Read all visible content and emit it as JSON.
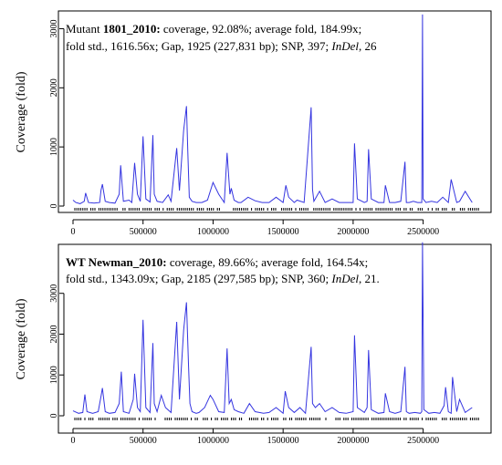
{
  "chart_data": [
    {
      "type": "line",
      "ylabel": "Coverage (fold)",
      "ylim": [
        0,
        3300
      ],
      "xlim": [
        0,
        2900000
      ],
      "xticks": [
        "0",
        "500000",
        "1000000",
        "1500000",
        "2000000",
        "2500000"
      ],
      "yticks": [
        "0",
        "1000",
        "2000",
        "3000"
      ],
      "annotation": {
        "line1": [
          {
            "text": "Mutant ",
            "bold": false
          },
          {
            "text": "1801_2010:",
            "bold": true
          },
          {
            "text": " coverage, 92.08%; average fold, 184.99x;",
            "bold": false
          }
        ],
        "line2": [
          {
            "text": "fold std., 1616.56x; Gap, 1925 (227,831 bp); SNP, 397; ",
            "bold": false
          },
          {
            "text": "InDel",
            "italic": true
          },
          {
            "text": ", 26",
            "bold": false
          }
        ]
      },
      "series": [
        {
          "x": [
            0,
            20000,
            50000,
            80000,
            90000,
            110000,
            150000,
            190000,
            200000,
            210000,
            230000,
            260000,
            300000,
            330000,
            340000,
            360000,
            400000,
            420000,
            440000,
            460000,
            480000,
            500000,
            520000,
            550000,
            570000,
            580000,
            600000,
            640000,
            680000,
            700000,
            740000,
            760000,
            790000,
            810000,
            820000,
            830000,
            850000,
            880000,
            920000,
            960000,
            1000000,
            1040000,
            1080000,
            1100000,
            1120000,
            1130000,
            1150000,
            1180000,
            1200000,
            1250000,
            1300000,
            1350000,
            1400000,
            1450000,
            1500000,
            1520000,
            1540000,
            1580000,
            1600000,
            1650000,
            1700000,
            1710000,
            1720000,
            1760000,
            1800000,
            1850000,
            1900000,
            1950000,
            2000000,
            2010000,
            2030000,
            2080000,
            2100000,
            2110000,
            2130000,
            2180000,
            2220000,
            2230000,
            2260000,
            2300000,
            2340000,
            2370000,
            2380000,
            2400000,
            2430000,
            2460000,
            2490000,
            2495000,
            2500000,
            2520000,
            2560000,
            2600000,
            2640000,
            2680000,
            2700000,
            2740000,
            2760000,
            2800000,
            2850000
          ],
          "y": [
            100,
            60,
            40,
            80,
            220,
            60,
            50,
            60,
            270,
            370,
            80,
            60,
            50,
            200,
            690,
            80,
            100,
            60,
            730,
            200,
            80,
            1180,
            120,
            70,
            1200,
            200,
            80,
            60,
            190,
            80,
            980,
            260,
            1280,
            1690,
            900,
            150,
            80,
            60,
            60,
            100,
            400,
            200,
            60,
            900,
            200,
            300,
            100,
            60,
            60,
            150,
            90,
            60,
            60,
            150,
            60,
            350,
            150,
            60,
            100,
            60,
            1670,
            280,
            80,
            250,
            60,
            120,
            60,
            60,
            60,
            1060,
            120,
            60,
            80,
            960,
            120,
            60,
            60,
            350,
            60,
            60,
            80,
            750,
            60,
            60,
            80,
            60,
            60,
            3240,
            120,
            60,
            80,
            60,
            150,
            60,
            450,
            60,
            80,
            250,
            60
          ]
        }
      ]
    },
    {
      "type": "line",
      "ylabel": "Coverage (fold)",
      "ylim": [
        0,
        4200
      ],
      "xlim": [
        0,
        2900000
      ],
      "xticks": [
        "0",
        "500000",
        "1000000",
        "1500000",
        "2000000",
        "2500000"
      ],
      "yticks": [
        "0",
        "1000",
        "2000",
        "3000"
      ],
      "annotation": {
        "line1": [
          {
            "text": "WT Newman_2010:",
            "bold": true
          },
          {
            "text": " coverage, 89.66%; average fold, 164.54x;",
            "bold": false
          }
        ],
        "line2": [
          {
            "text": "fold std., 1343.09x; Gap, 2185 (297,585 bp); SNP, 360; ",
            "bold": false
          },
          {
            "text": "InDel",
            "italic": true
          },
          {
            "text": ", 21.",
            "bold": false
          }
        ]
      },
      "series": [
        {
          "x": [
            0,
            40000,
            70000,
            85000,
            100000,
            140000,
            180000,
            200000,
            210000,
            230000,
            260000,
            300000,
            330000,
            345000,
            360000,
            400000,
            430000,
            440000,
            460000,
            480000,
            500000,
            520000,
            550000,
            570000,
            580000,
            600000,
            630000,
            660000,
            700000,
            740000,
            760000,
            790000,
            810000,
            825000,
            835000,
            850000,
            880000,
            900000,
            940000,
            980000,
            1000000,
            1040000,
            1080000,
            1100000,
            1115000,
            1130000,
            1150000,
            1180000,
            1220000,
            1260000,
            1300000,
            1360000,
            1400000,
            1450000,
            1500000,
            1515000,
            1540000,
            1580000,
            1620000,
            1660000,
            1700000,
            1710000,
            1730000,
            1760000,
            1800000,
            1850000,
            1900000,
            1950000,
            2000000,
            2010000,
            2030000,
            2080000,
            2100000,
            2110000,
            2130000,
            2180000,
            2220000,
            2230000,
            2260000,
            2300000,
            2340000,
            2370000,
            2380000,
            2400000,
            2440000,
            2480000,
            2490000,
            2495000,
            2505000,
            2540000,
            2580000,
            2620000,
            2650000,
            2660000,
            2680000,
            2700000,
            2710000,
            2740000,
            2760000,
            2800000,
            2850000
          ],
          "y": [
            120,
            60,
            80,
            520,
            100,
            60,
            100,
            480,
            680,
            100,
            60,
            80,
            300,
            1080,
            100,
            60,
            400,
            1030,
            200,
            100,
            2350,
            200,
            80,
            1780,
            300,
            100,
            500,
            200,
            80,
            2300,
            400,
            2100,
            2780,
            1200,
            300,
            100,
            60,
            80,
            200,
            500,
            400,
            100,
            80,
            1650,
            300,
            400,
            150,
            100,
            60,
            300,
            100,
            60,
            80,
            200,
            60,
            600,
            200,
            80,
            200,
            60,
            1690,
            300,
            200,
            300,
            100,
            200,
            80,
            60,
            100,
            1970,
            200,
            80,
            200,
            1610,
            150,
            60,
            80,
            550,
            100,
            60,
            100,
            1200,
            100,
            60,
            80,
            60,
            100,
            4250,
            150,
            60,
            80,
            60,
            250,
            700,
            100,
            60,
            950,
            100,
            400,
            80,
            200
          ]
        }
      ]
    }
  ]
}
